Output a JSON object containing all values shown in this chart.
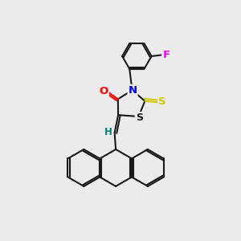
{
  "background_color": "#ebebeb",
  "bond_color": "#1a1a1a",
  "atom_colors": {
    "O": "#ff0000",
    "N": "#0000ee",
    "S_thioxo": "#cccc00",
    "S_ring": "#1a1a1a",
    "F": "#ee00ee",
    "H": "#008080",
    "C": "#1a1a1a"
  },
  "line_width": 1.5,
  "figsize": [
    3.0,
    3.0
  ],
  "dpi": 100
}
